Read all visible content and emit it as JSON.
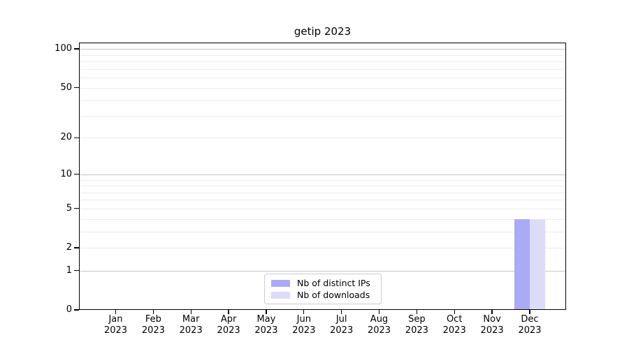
{
  "window": {
    "background": "#ffffff"
  },
  "chart_data": {
    "type": "bar",
    "title": "getip 2023",
    "categories": [
      "Jan",
      "Feb",
      "Mar",
      "Apr",
      "May",
      "Jun",
      "Jul",
      "Aug",
      "Sep",
      "Oct",
      "Nov",
      "Dec"
    ],
    "category_year": "2023",
    "series": [
      {
        "name": "Nb of distinct IPs",
        "color": "#aaaaf6",
        "values": [
          0,
          0,
          0,
          0,
          0,
          0,
          0,
          0,
          0,
          0,
          0,
          4
        ]
      },
      {
        "name": "Nb of downloads",
        "color": "#dcdcf9",
        "values": [
          0,
          0,
          0,
          0,
          0,
          0,
          0,
          0,
          0,
          0,
          0,
          4
        ]
      }
    ],
    "xlabel": "",
    "ylabel": "",
    "yscale": "log10(value+1)",
    "ylim": [
      0,
      112
    ],
    "yticks": [
      0,
      1,
      2,
      5,
      10,
      20,
      50,
      100
    ],
    "major_gridlines": [
      1,
      10,
      100
    ],
    "minor_gridlines": [
      2,
      3,
      4,
      5,
      6,
      7,
      8,
      9,
      20,
      30,
      40,
      50,
      60,
      70,
      80,
      90
    ],
    "grid": true,
    "legend_position": "lower center"
  },
  "colors": {
    "major_grid": "#c6c6c6",
    "minor_grid": "#ececec",
    "spine": "#000000",
    "text": "#000000",
    "legend_border": "#cccccc",
    "background": "#ffffff"
  }
}
